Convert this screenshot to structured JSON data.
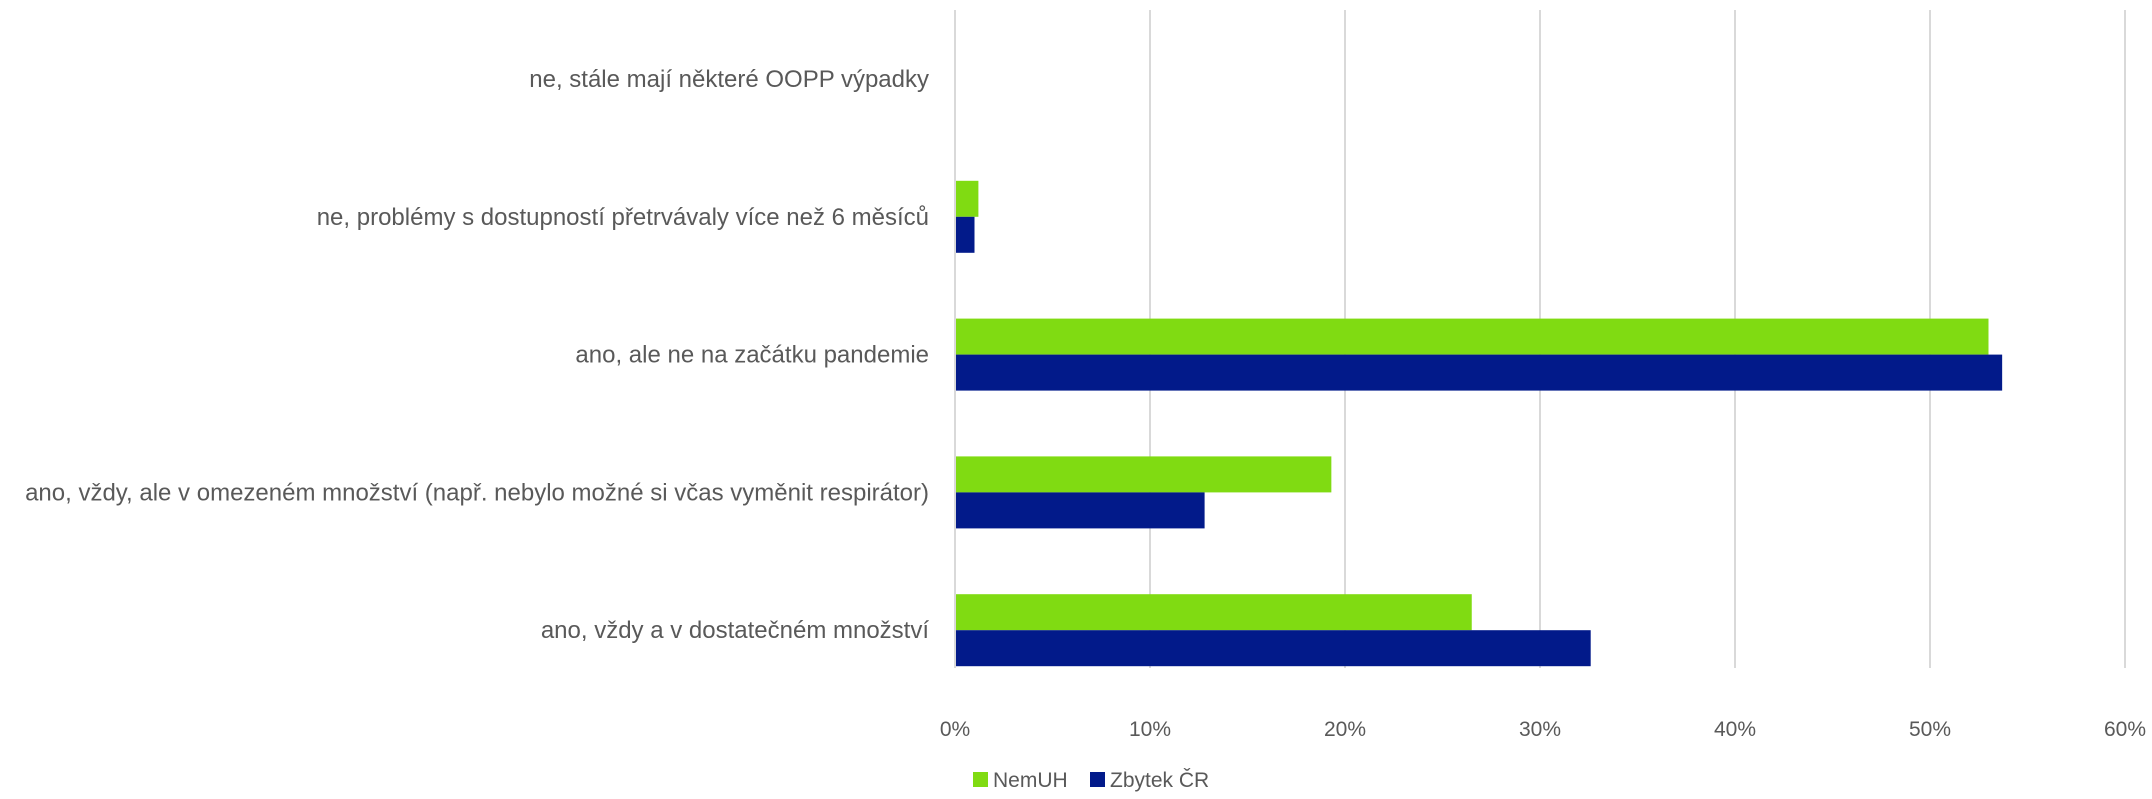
{
  "chart_data": {
    "type": "bar",
    "orientation": "horizontal",
    "categories": [
      "ne, stále mají některé OOPP výpadky",
      "ne, problémy s dostupností přetrvávaly více než 6 měsíců",
      "ano, ale ne na začátku pandemie",
      "ano, vždy, ale v omezeném množství (např. nebylo možné si včas vyměnit respirátor)",
      "ano, vždy a v dostatečném množství"
    ],
    "series": [
      {
        "name": "NemUH",
        "color": "#80db12",
        "values": [
          0,
          1.2,
          53,
          19.3,
          26.5
        ]
      },
      {
        "name": "Zbytek ČR",
        "color": "#021a8a",
        "values": [
          0,
          1.0,
          53.7,
          12.8,
          32.6
        ]
      }
    ],
    "x_ticks": [
      "0%",
      "10%",
      "20%",
      "30%",
      "40%",
      "50%",
      "60%"
    ],
    "xlim": [
      0,
      60
    ],
    "grid": true,
    "legend": "bottom-center",
    "title": "",
    "xlabel": "",
    "ylabel": ""
  }
}
